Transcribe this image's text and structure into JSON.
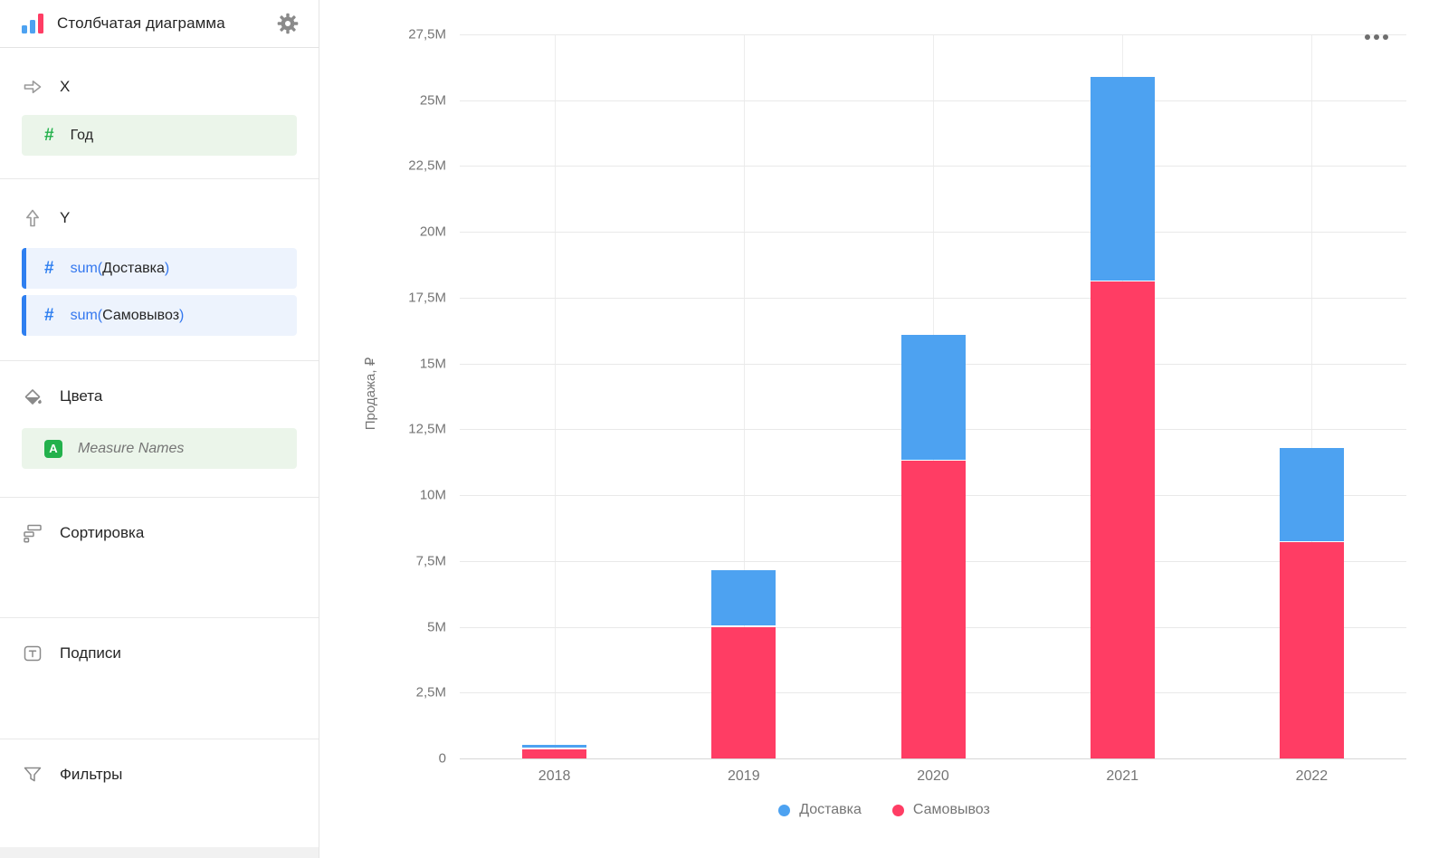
{
  "header": {
    "title": "Столбчатая диаграмма"
  },
  "sidebar": {
    "x_section": {
      "label": "X",
      "field": {
        "name": "Год"
      }
    },
    "y_section": {
      "label": "Y",
      "fields": [
        {
          "prefix": "sum(",
          "name": "Доставка",
          "suffix": ")"
        },
        {
          "prefix": "sum(",
          "name": "Самовывоз",
          "suffix": ")"
        }
      ]
    },
    "colors_section": {
      "label": "Цвета",
      "field": {
        "badge": "A",
        "name": "Measure Names"
      }
    },
    "sorting_section": {
      "label": "Сортировка"
    },
    "labels_section": {
      "label": "Подписи"
    },
    "filters_section": {
      "label": "Фильтры"
    }
  },
  "colors": {
    "bar_blue": "#4DA2F1",
    "bar_red": "#FF3D64",
    "accent_blue": "#2E7FF0",
    "green": "#23B14C",
    "muted_text": "#757575"
  },
  "chart_data": {
    "type": "bar",
    "stacked": true,
    "categories": [
      "2018",
      "2019",
      "2020",
      "2021",
      "2022"
    ],
    "series": [
      {
        "name": "Доставка",
        "color": "#4DA2F1",
        "values": [
          0.15,
          2.15,
          4.8,
          7.8,
          3.6
        ]
      },
      {
        "name": "Самовывоз",
        "color": "#FF3D64",
        "values": [
          0.35,
          5.0,
          11.3,
          18.1,
          8.2
        ]
      }
    ],
    "stack_bottom_to_top": [
      "Самовывоз",
      "Доставка"
    ],
    "values_unit": "millions",
    "title": "",
    "xlabel": "",
    "ylabel": "Продажа, ₽",
    "ylim": [
      0,
      27.5
    ],
    "y_ticks": [
      {
        "v": 0,
        "label": "0"
      },
      {
        "v": 2.5,
        "label": "2,5M"
      },
      {
        "v": 5,
        "label": "5M"
      },
      {
        "v": 7.5,
        "label": "7,5M"
      },
      {
        "v": 10,
        "label": "10M"
      },
      {
        "v": 12.5,
        "label": "12,5M"
      },
      {
        "v": 15,
        "label": "15M"
      },
      {
        "v": 17.5,
        "label": "17,5M"
      },
      {
        "v": 20,
        "label": "20M"
      },
      {
        "v": 22.5,
        "label": "22,5M"
      },
      {
        "v": 25,
        "label": "25M"
      },
      {
        "v": 27.5,
        "label": "27,5M"
      }
    ],
    "grid": true,
    "legend_position": "bottom"
  }
}
